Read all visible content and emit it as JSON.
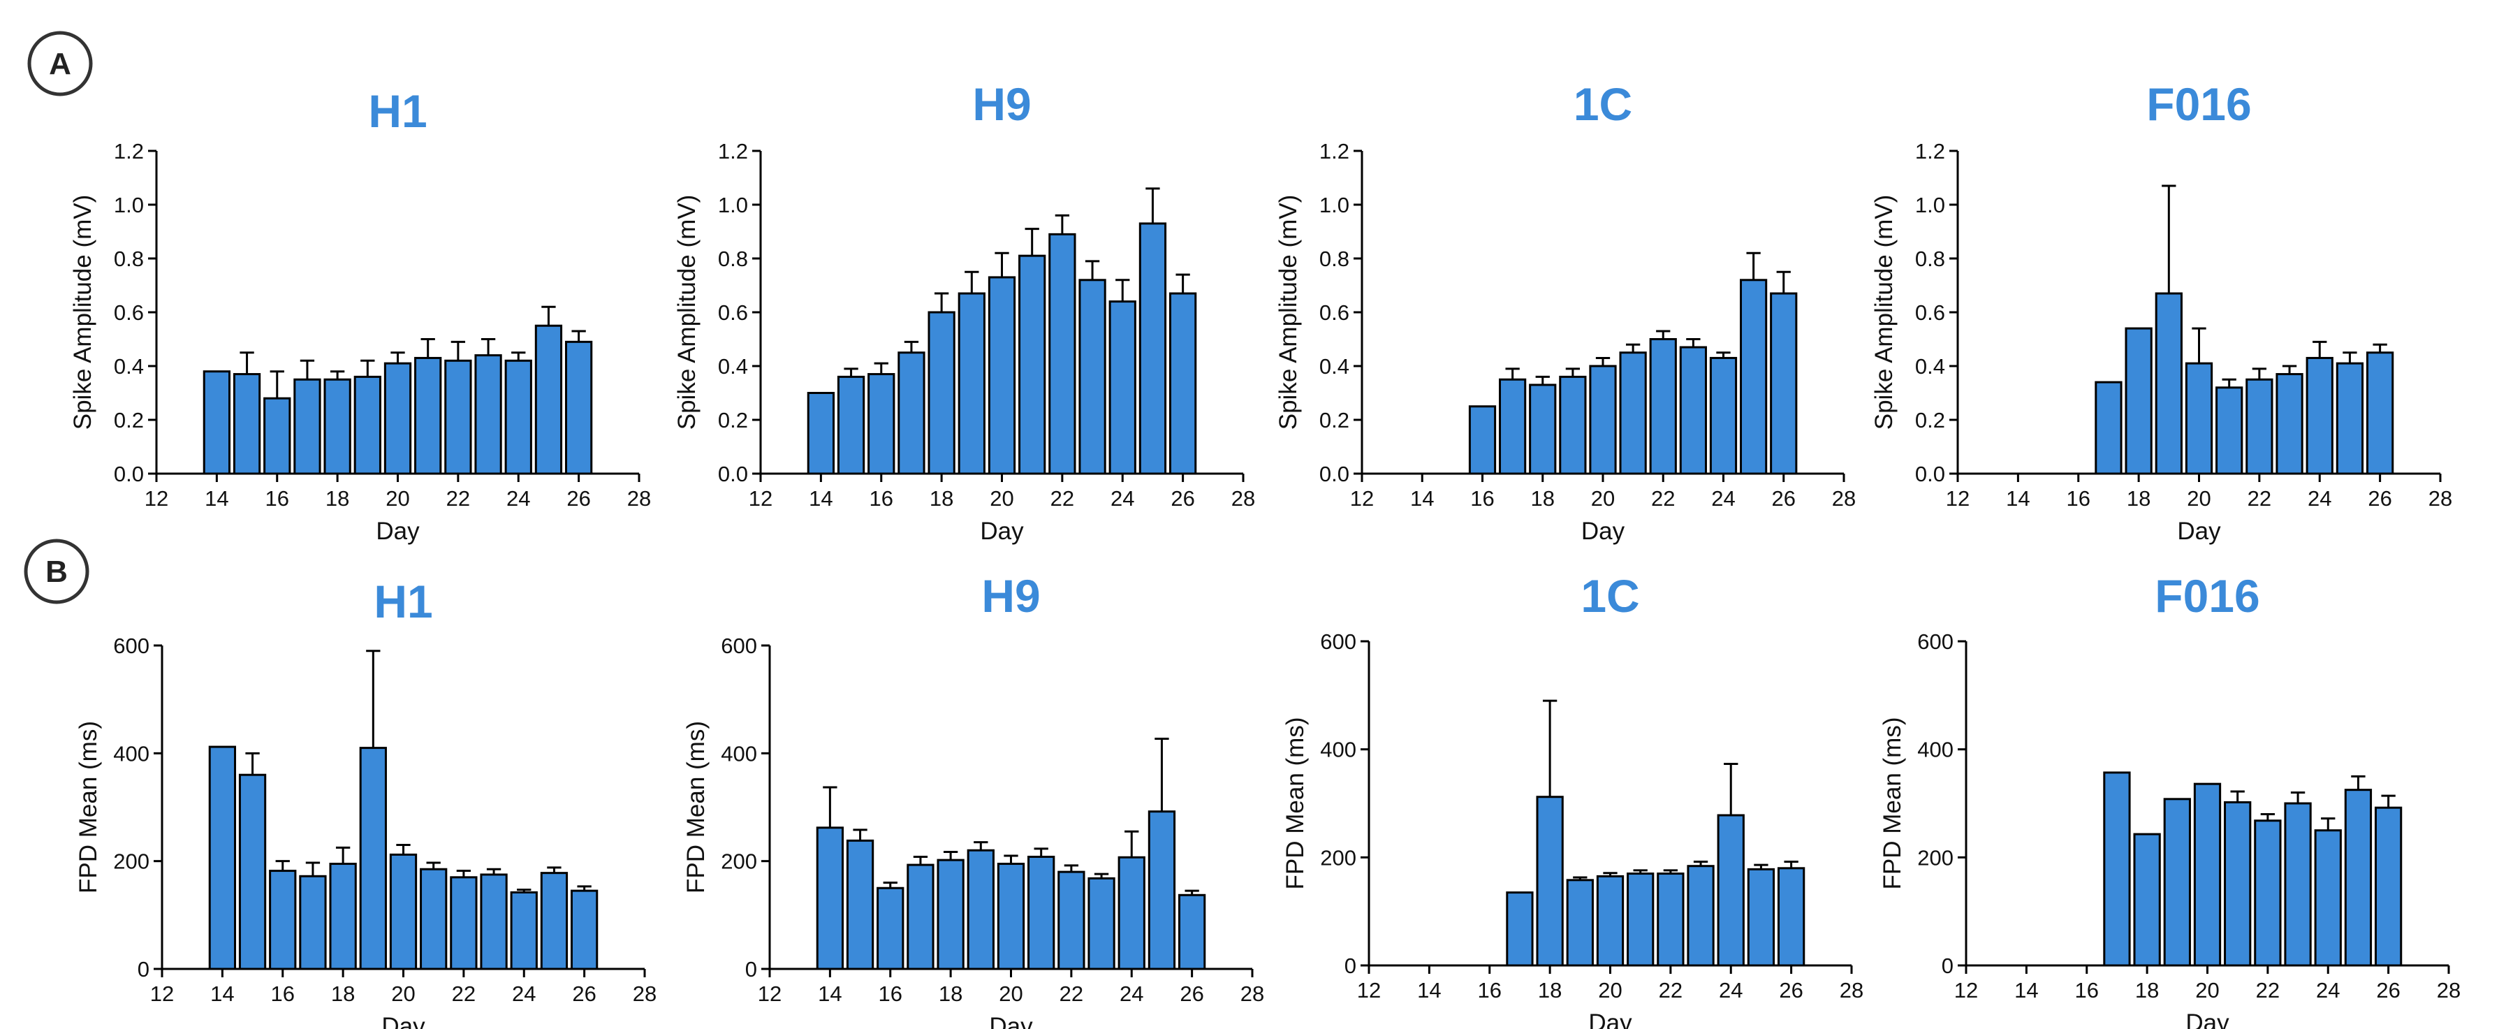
{
  "panel_labels": [
    "A",
    "B"
  ],
  "colors": {
    "bar": "#3b8ad9",
    "title": "#3b8ad9",
    "axis": "#000000"
  },
  "chart_data": [
    {
      "type": "bar",
      "panel": "A",
      "title": "H1",
      "xlabel": "Day",
      "ylabel": "Spike Amplitude (mV)",
      "xlim": [
        12,
        28
      ],
      "ylim": [
        0,
        1.2
      ],
      "xticks": [
        "12",
        "14",
        "16",
        "18",
        "20",
        "22",
        "24",
        "26",
        "28"
      ],
      "yticks": [
        "0.0",
        "0.2",
        "0.4",
        "0.6",
        "0.8",
        "1.0",
        "1.2"
      ],
      "x": [
        14,
        15,
        16,
        17,
        18,
        19,
        20,
        21,
        22,
        23,
        24,
        25,
        26
      ],
      "values": [
        0.38,
        0.37,
        0.28,
        0.35,
        0.35,
        0.36,
        0.41,
        0.43,
        0.42,
        0.44,
        0.42,
        0.55,
        0.49
      ],
      "errors": [
        0.0,
        0.08,
        0.1,
        0.07,
        0.03,
        0.06,
        0.04,
        0.07,
        0.07,
        0.06,
        0.03,
        0.07,
        0.04
      ]
    },
    {
      "type": "bar",
      "panel": "A",
      "title": "H9",
      "xlabel": "Day",
      "ylabel": "Spike Amplitude (mV)",
      "xlim": [
        12,
        28
      ],
      "ylim": [
        0,
        1.2
      ],
      "xticks": [
        "12",
        "14",
        "16",
        "18",
        "20",
        "22",
        "24",
        "26",
        "28"
      ],
      "yticks": [
        "0.0",
        "0.2",
        "0.4",
        "0.6",
        "0.8",
        "1.0",
        "1.2"
      ],
      "x": [
        14,
        15,
        16,
        17,
        18,
        19,
        20,
        21,
        22,
        23,
        24,
        25,
        26
      ],
      "values": [
        0.3,
        0.36,
        0.37,
        0.45,
        0.6,
        0.67,
        0.73,
        0.81,
        0.89,
        0.72,
        0.64,
        0.93,
        0.67
      ],
      "errors": [
        0.0,
        0.03,
        0.04,
        0.04,
        0.07,
        0.08,
        0.09,
        0.1,
        0.07,
        0.07,
        0.08,
        0.13,
        0.07
      ]
    },
    {
      "type": "bar",
      "panel": "A",
      "title": "1C",
      "xlabel": "Day",
      "ylabel": "Spike Amplitude (mV)",
      "xlim": [
        12,
        28
      ],
      "ylim": [
        0,
        1.2
      ],
      "xticks": [
        "12",
        "14",
        "16",
        "18",
        "20",
        "22",
        "24",
        "26",
        "28"
      ],
      "yticks": [
        "0.0",
        "0.2",
        "0.4",
        "0.6",
        "0.8",
        "1.0",
        "1.2"
      ],
      "x": [
        16,
        17,
        18,
        19,
        20,
        21,
        22,
        23,
        24,
        25,
        26
      ],
      "values": [
        0.25,
        0.35,
        0.33,
        0.36,
        0.4,
        0.45,
        0.5,
        0.47,
        0.43,
        0.72,
        0.67
      ],
      "errors": [
        0.0,
        0.04,
        0.03,
        0.03,
        0.03,
        0.03,
        0.03,
        0.03,
        0.02,
        0.1,
        0.08
      ]
    },
    {
      "type": "bar",
      "panel": "A",
      "title": "F016",
      "xlabel": "Day",
      "ylabel": "Spike Amplitude (mV)",
      "xlim": [
        12,
        28
      ],
      "ylim": [
        0,
        1.2
      ],
      "xticks": [
        "12",
        "14",
        "16",
        "18",
        "20",
        "22",
        "24",
        "26",
        "28"
      ],
      "yticks": [
        "0.0",
        "0.2",
        "0.4",
        "0.6",
        "0.8",
        "1.0",
        "1.2"
      ],
      "x": [
        17,
        18,
        19,
        20,
        21,
        22,
        23,
        24,
        25,
        26
      ],
      "values": [
        0.34,
        0.54,
        0.67,
        0.41,
        0.32,
        0.35,
        0.37,
        0.43,
        0.41,
        0.45
      ],
      "errors": [
        0.0,
        0.0,
        0.4,
        0.13,
        0.03,
        0.04,
        0.03,
        0.06,
        0.04,
        0.03
      ]
    },
    {
      "type": "bar",
      "panel": "B",
      "title": "H1",
      "xlabel": "Day",
      "ylabel": "FPD Mean (ms)",
      "xlim": [
        12,
        28
      ],
      "ylim": [
        0,
        600
      ],
      "xticks": [
        "12",
        "14",
        "16",
        "18",
        "20",
        "22",
        "24",
        "26",
        "28"
      ],
      "yticks": [
        "0",
        "200",
        "400",
        "600"
      ],
      "x": [
        14,
        15,
        16,
        17,
        18,
        19,
        20,
        21,
        22,
        23,
        24,
        25,
        26
      ],
      "values": [
        412,
        360,
        182,
        172,
        195,
        410,
        212,
        185,
        170,
        175,
        142,
        178,
        145
      ],
      "errors": [
        0,
        40,
        18,
        25,
        30,
        180,
        18,
        12,
        12,
        10,
        5,
        10,
        8
      ]
    },
    {
      "type": "bar",
      "panel": "B",
      "title": "H9",
      "xlabel": "Day",
      "ylabel": "FPD Mean (ms)",
      "xlim": [
        12,
        28
      ],
      "ylim": [
        0,
        600
      ],
      "xticks": [
        "12",
        "14",
        "16",
        "18",
        "20",
        "22",
        "24",
        "26",
        "28"
      ],
      "yticks": [
        "0",
        "200",
        "400",
        "600"
      ],
      "x": [
        14,
        15,
        16,
        17,
        18,
        19,
        20,
        21,
        22,
        23,
        24,
        25,
        26
      ],
      "values": [
        262,
        238,
        150,
        193,
        202,
        220,
        195,
        208,
        180,
        168,
        207,
        292,
        137
      ],
      "errors": [
        75,
        20,
        10,
        15,
        15,
        15,
        15,
        15,
        12,
        8,
        48,
        135,
        8
      ]
    },
    {
      "type": "bar",
      "panel": "B",
      "title": "1C",
      "xlabel": "Day",
      "ylabel": "FPD Mean (ms)",
      "xlim": [
        12,
        28
      ],
      "ylim": [
        0,
        600
      ],
      "xticks": [
        "12",
        "14",
        "16",
        "18",
        "20",
        "22",
        "24",
        "26",
        "28"
      ],
      "yticks": [
        "0",
        "200",
        "400",
        "600"
      ],
      "x": [
        17,
        18,
        19,
        20,
        21,
        22,
        23,
        24,
        25,
        26
      ],
      "values": [
        135,
        312,
        158,
        165,
        170,
        170,
        184,
        278,
        178,
        180
      ],
      "errors": [
        0,
        178,
        5,
        6,
        6,
        6,
        8,
        95,
        8,
        12
      ]
    },
    {
      "type": "bar",
      "panel": "B",
      "title": "F016",
      "xlabel": "Day",
      "ylabel": "FPD Mean (ms)",
      "xlim": [
        12,
        28
      ],
      "ylim": [
        0,
        600
      ],
      "xticks": [
        "12",
        "14",
        "16",
        "18",
        "20",
        "22",
        "24",
        "26",
        "28"
      ],
      "yticks": [
        "0",
        "200",
        "400",
        "600"
      ],
      "x": [
        17,
        18,
        19,
        20,
        21,
        22,
        23,
        24,
        25,
        26
      ],
      "values": [
        357,
        243,
        308,
        336,
        302,
        268,
        300,
        250,
        325,
        292
      ],
      "errors": [
        0,
        0,
        0,
        0,
        20,
        12,
        20,
        22,
        25,
        22
      ]
    }
  ]
}
